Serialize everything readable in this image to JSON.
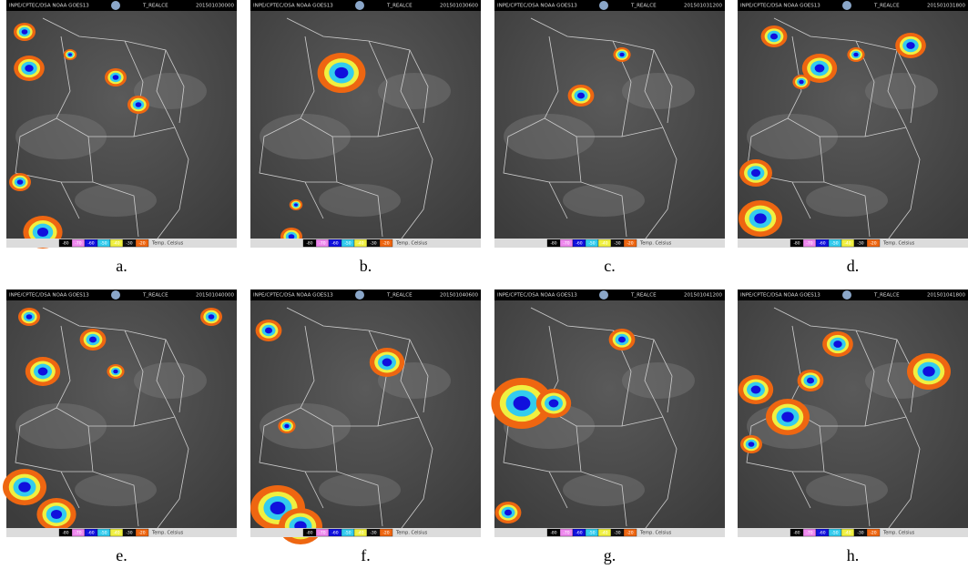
{
  "panels": [
    {
      "header_left": "INPE/CPTEC/DSA NOAA GOES13",
      "header_mid": "T_REALCE",
      "timestamp": "201501030000",
      "caption": "a."
    },
    {
      "header_left": "INPE/CPTEC/DSA NOAA GOES13",
      "header_mid": "T_REALCE",
      "timestamp": "201501030600",
      "caption": "b."
    },
    {
      "header_left": "INPE/CPTEC/DSA NOAA GOES13",
      "header_mid": "T_REALCE",
      "timestamp": "201501031200",
      "caption": "c."
    },
    {
      "header_left": "INPE/CPTEC/DSA NOAA GOES13",
      "header_mid": "T_REALCE",
      "timestamp": "201501031800",
      "caption": "d."
    },
    {
      "header_left": "INPE/CPTEC/DSA NOAA GOES13",
      "header_mid": "T_REALCE",
      "timestamp": "201501040000",
      "caption": "e."
    },
    {
      "header_left": "INPE/CPTEC/DSA NOAA GOES13",
      "header_mid": "T_REALCE",
      "timestamp": "201501040600",
      "caption": "f."
    },
    {
      "header_left": "INPE/CPTEC/DSA NOAA GOES13",
      "header_mid": "T_REALCE",
      "timestamp": "201501041200",
      "caption": "g."
    },
    {
      "header_left": "INPE/CPTEC/DSA NOAA GOES13",
      "header_mid": "T_REALCE",
      "timestamp": "201501041800",
      "caption": "h."
    }
  ],
  "colorbar": {
    "labels": [
      "-80",
      "-70",
      "-60",
      "-50",
      "-40",
      "-30",
      "-20"
    ],
    "colors": [
      "#000000",
      "#ee88ee",
      "#1010dd",
      "#33ccee",
      "#f0f040",
      "#111111",
      "#ee6611"
    ],
    "unit": "Temp. Celsius"
  }
}
